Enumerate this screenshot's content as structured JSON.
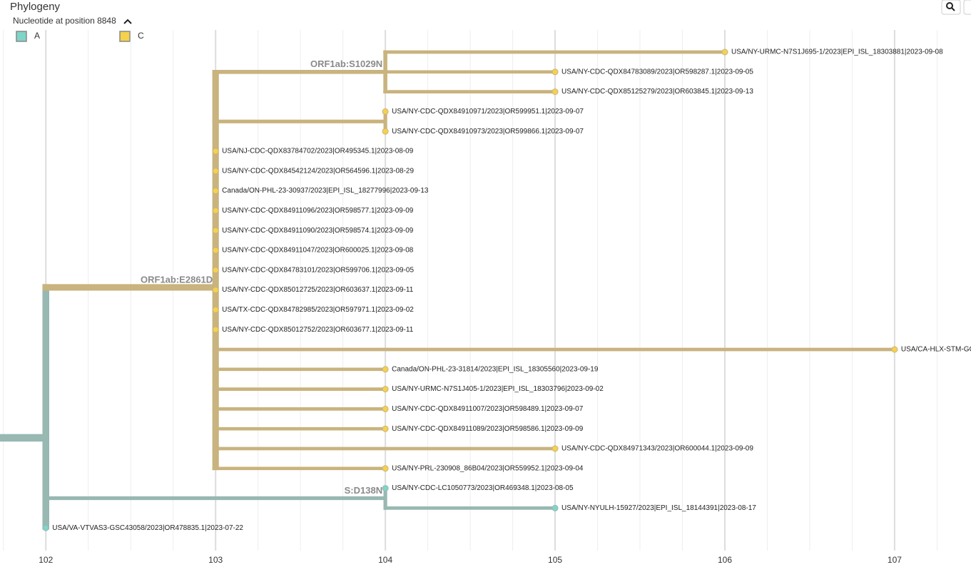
{
  "header": {
    "title": "Phylogeny",
    "color_by": "Nucleotide at position 8848"
  },
  "chart_data": {
    "type": "tree",
    "legend": [
      {
        "name": "A",
        "color": "#7fd5c8",
        "branch_color": "#98b8b2"
      },
      {
        "name": "C",
        "color": "#f5d14c",
        "branch_color": "#c9b37e"
      }
    ],
    "xlim": [
      101.73,
      107.45
    ],
    "xticks": [
      102,
      103,
      104,
      105,
      106,
      107
    ],
    "minor_grid_step": 0.25,
    "grid": true,
    "tree": {
      "x": 102,
      "state": "A",
      "children": [
        {
          "x": 103,
          "state": "C",
          "label": "ORF1ab:E2861D",
          "children": [
            {
              "x": 104,
              "state": "C",
              "label": "ORF1ab:S1029N",
              "children": [
                {
                  "x": 106,
                  "state": "C",
                  "name": "USA/NY-URMC-N7S1J695-1/2023|EPI_ISL_18303881|2023-09-08"
                },
                {
                  "x": 105,
                  "state": "C",
                  "name": "USA/NY-CDC-QDX84783089/2023|OR598287.1|2023-09-05"
                },
                {
                  "x": 105,
                  "state": "C",
                  "name": "USA/NY-CDC-QDX85125279/2023|OR603845.1|2023-09-13"
                }
              ]
            },
            {
              "x": 104,
              "state": "C",
              "children": [
                {
                  "x": 104,
                  "state": "C",
                  "name": "USA/NY-CDC-QDX84910971/2023|OR599951.1|2023-09-07"
                },
                {
                  "x": 104,
                  "state": "C",
                  "name": "USA/NY-CDC-QDX84910973/2023|OR599866.1|2023-09-07"
                }
              ]
            },
            {
              "x": 103,
              "state": "C",
              "name": "USA/NJ-CDC-QDX83784702/2023|OR495345.1|2023-08-09"
            },
            {
              "x": 103,
              "state": "C",
              "name": "USA/NY-CDC-QDX84542124/2023|OR564596.1|2023-08-29"
            },
            {
              "x": 103,
              "state": "C",
              "name": "Canada/ON-PHL-23-30937/2023|EPI_ISL_18277996|2023-09-13"
            },
            {
              "x": 103,
              "state": "C",
              "name": "USA/NY-CDC-QDX84911096/2023|OR598577.1|2023-09-09"
            },
            {
              "x": 103,
              "state": "C",
              "name": "USA/NY-CDC-QDX84911090/2023|OR598574.1|2023-09-09"
            },
            {
              "x": 103,
              "state": "C",
              "name": "USA/NY-CDC-QDX84911047/2023|OR600025.1|2023-09-08"
            },
            {
              "x": 103,
              "state": "C",
              "name": "USA/NY-CDC-QDX84783101/2023|OR599706.1|2023-09-05"
            },
            {
              "x": 103,
              "state": "C",
              "name": "USA/NY-CDC-QDX85012725/2023|OR603637.1|2023-09-11"
            },
            {
              "x": 103,
              "state": "C",
              "name": "USA/TX-CDC-QDX84782985/2023|OR597971.1|2023-09-02"
            },
            {
              "x": 103,
              "state": "C",
              "name": "USA/NY-CDC-QDX85012752/2023|OR603677.1|2023-09-11"
            },
            {
              "x": 107,
              "state": "C",
              "name": "USA/CA-HLX-STM-GC"
            },
            {
              "x": 104,
              "state": "C",
              "name": "Canada/ON-PHL-23-31814/2023|EPI_ISL_18305560|2023-09-19"
            },
            {
              "x": 104,
              "state": "C",
              "name": "USA/NY-URMC-N7S1J405-1/2023|EPI_ISL_18303796|2023-09-02"
            },
            {
              "x": 104,
              "state": "C",
              "name": "USA/NY-CDC-QDX84911007/2023|OR598489.1|2023-09-07"
            },
            {
              "x": 104,
              "state": "C",
              "name": "USA/NY-CDC-QDX84911089/2023|OR598586.1|2023-09-09"
            },
            {
              "x": 105,
              "state": "C",
              "name": "USA/NY-CDC-QDX84971343/2023|OR600044.1|2023-09-09"
            },
            {
              "x": 104,
              "state": "C",
              "name": "USA/NY-PRL-230908_86B04/2023|OR559952.1|2023-09-04"
            }
          ]
        },
        {
          "x": 104,
          "state": "A",
          "label": "S:D138N",
          "children": [
            {
              "x": 104,
              "state": "A",
              "name": "USA/NY-CDC-LC1050773/2023|OR469348.1|2023-08-05"
            },
            {
              "x": 105,
              "state": "A",
              "name": "USA/NY-NYULH-15927/2023|EPI_ISL_18144391|2023-08-17"
            }
          ]
        },
        {
          "x": 102,
          "state": "A",
          "name": "USA/VA-VTVAS3-GSC43058/2023|OR478835.1|2023-07-22"
        }
      ]
    }
  }
}
